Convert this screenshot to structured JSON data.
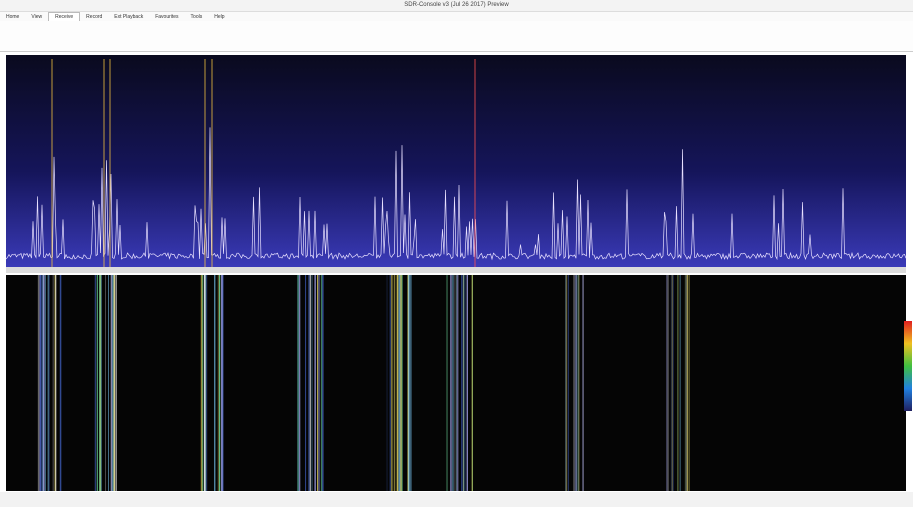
{
  "window": {
    "title": "SDR-Console v3 (Jul 26 2017) Preview"
  },
  "menu": {
    "tabs": [
      "Home",
      "View",
      "Receive",
      "Record",
      "Ext Playback",
      "Favourites",
      "Tools",
      "Help"
    ]
  }
}
